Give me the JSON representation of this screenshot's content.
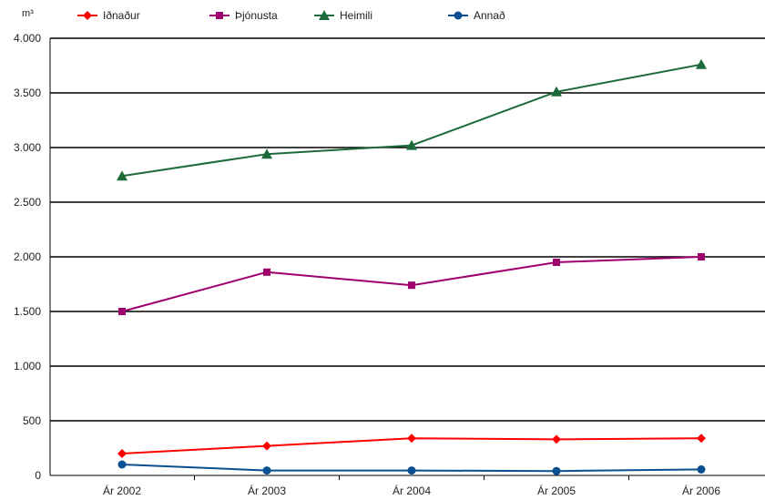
{
  "chart_data": {
    "type": "line",
    "unit_label": "m³",
    "categories": [
      "Ár 2002",
      "Ár 2003",
      "Ár 2004",
      "Ár 2005",
      "Ár 2006"
    ],
    "ylim": [
      0,
      4000
    ],
    "yticks": [
      0,
      500,
      1000,
      1500,
      2000,
      2500,
      3000,
      3500,
      4000
    ],
    "ytick_labels": [
      "0",
      "500",
      "1.000",
      "1.500",
      "2.000",
      "2.500",
      "3.000",
      "3.500",
      "4.000"
    ],
    "grid": true,
    "legend_position": "top",
    "series": [
      {
        "name": "Iðnaður",
        "color": "#ff0000",
        "marker": "diamond",
        "values": [
          200,
          270,
          340,
          330,
          340
        ]
      },
      {
        "name": "Þjónusta",
        "color": "#a0006e",
        "marker": "square",
        "values": [
          1500,
          1860,
          1740,
          1950,
          2000
        ]
      },
      {
        "name": "Heimili",
        "color": "#1d6b3a",
        "marker": "triangle",
        "values": [
          2740,
          2940,
          3020,
          3510,
          3760
        ]
      },
      {
        "name": "Annað",
        "color": "#0a4f8f",
        "marker": "circle",
        "values": [
          100,
          45,
          45,
          40,
          55
        ]
      }
    ]
  }
}
